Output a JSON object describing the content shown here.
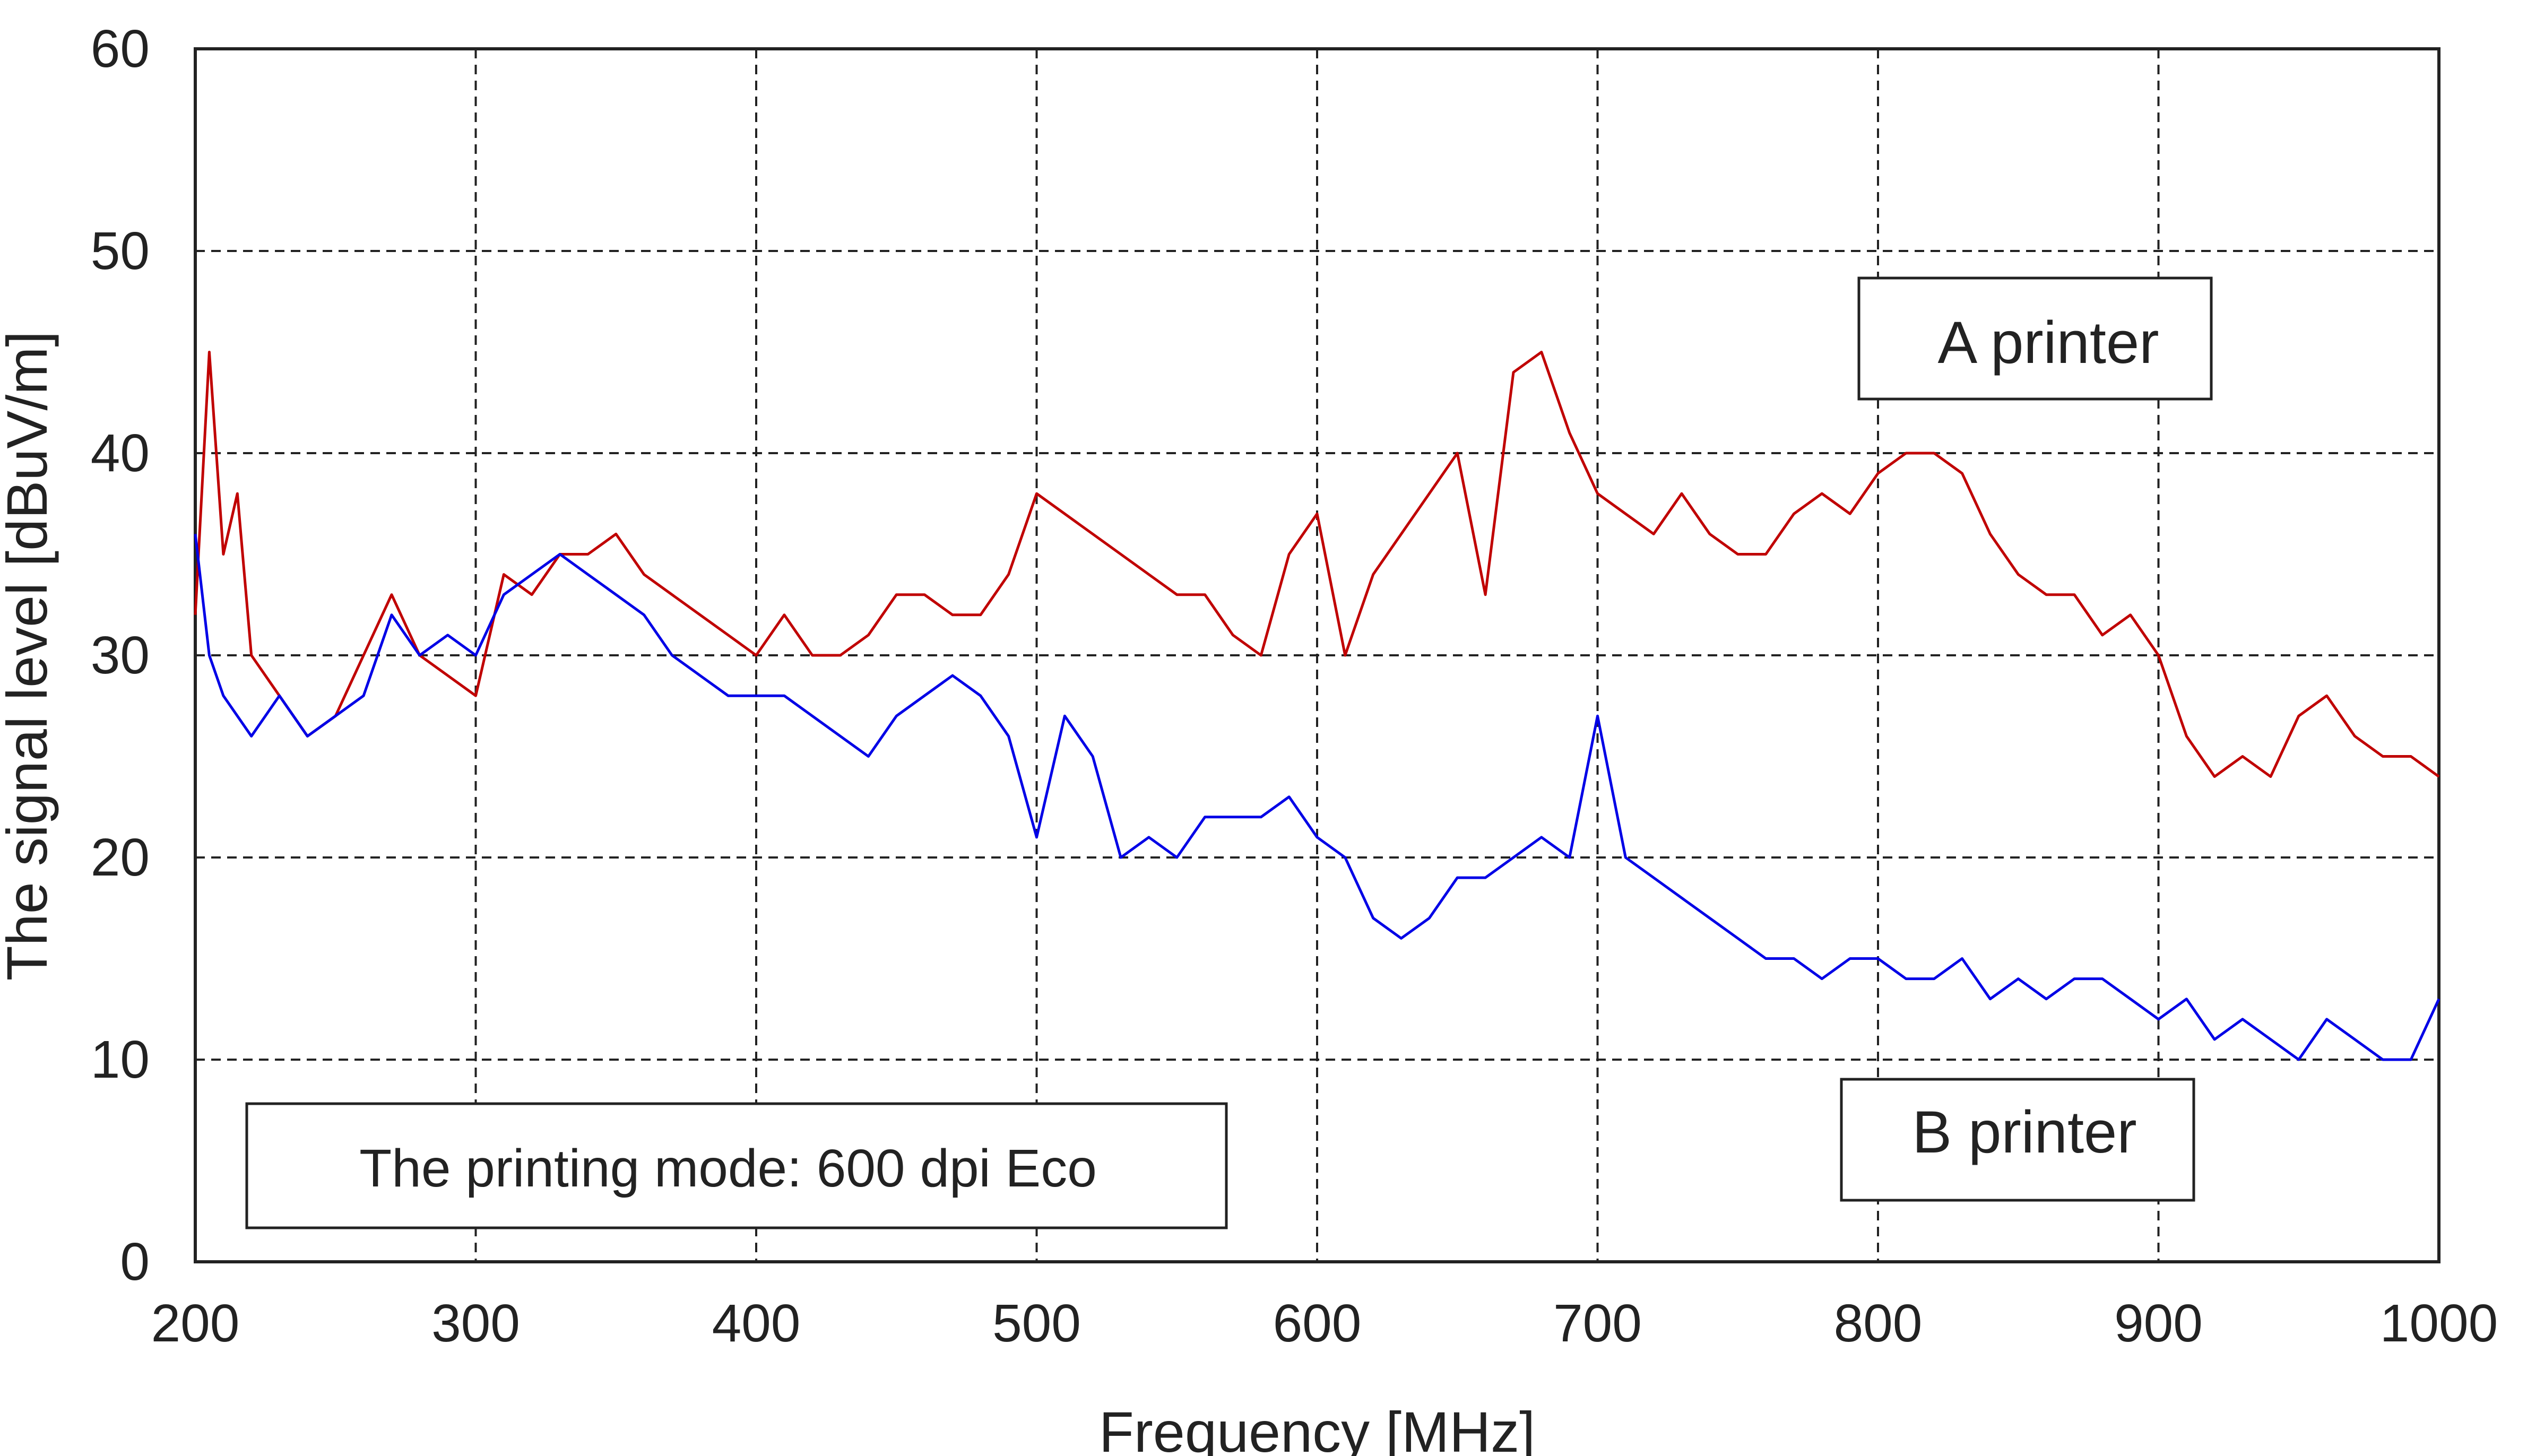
{
  "chart_data": {
    "type": "line",
    "title": "",
    "xlabel": "Frequency [MHz]",
    "ylabel": "The signal level [dBuV/m]",
    "xlim": [
      200,
      1000
    ],
    "ylim": [
      0,
      60
    ],
    "x_ticks": [
      200,
      300,
      400,
      500,
      600,
      700,
      800,
      900,
      1000
    ],
    "y_ticks": [
      0,
      10,
      20,
      30,
      40,
      50,
      60
    ],
    "grid": true,
    "grid_style": "dashed",
    "legend": "none",
    "series": [
      {
        "name": "A printer",
        "color": "#c00000",
        "x": [
          200,
          205,
          210,
          215,
          220,
          230,
          240,
          250,
          260,
          270,
          280,
          290,
          300,
          310,
          320,
          330,
          340,
          350,
          360,
          370,
          380,
          390,
          400,
          410,
          420,
          430,
          440,
          450,
          460,
          470,
          480,
          490,
          500,
          510,
          520,
          530,
          540,
          550,
          560,
          570,
          580,
          590,
          600,
          610,
          620,
          630,
          640,
          650,
          660,
          670,
          680,
          690,
          700,
          710,
          720,
          730,
          740,
          750,
          760,
          770,
          780,
          790,
          800,
          810,
          820,
          830,
          840,
          850,
          860,
          870,
          880,
          890,
          900,
          910,
          920,
          930,
          940,
          950,
          960,
          970,
          980,
          990,
          1000
        ],
        "y": [
          32,
          45,
          35,
          38,
          30,
          28,
          26,
          27,
          30,
          33,
          30,
          29,
          28,
          34,
          33,
          35,
          35,
          36,
          34,
          33,
          32,
          31,
          30,
          32,
          30,
          30,
          31,
          33,
          33,
          32,
          32,
          34,
          38,
          37,
          36,
          35,
          34,
          33,
          33,
          31,
          30,
          35,
          37,
          30,
          34,
          36,
          38,
          40,
          33,
          44,
          45,
          41,
          38,
          37,
          36,
          38,
          36,
          35,
          35,
          37,
          38,
          37,
          39,
          40,
          40,
          39,
          36,
          34,
          33,
          33,
          31,
          32,
          30,
          26,
          24,
          25,
          24,
          27,
          28,
          26,
          25,
          25,
          24
        ]
      },
      {
        "name": "B printer",
        "color": "#0000e6",
        "x": [
          200,
          205,
          210,
          215,
          220,
          230,
          240,
          250,
          260,
          270,
          280,
          290,
          300,
          310,
          320,
          330,
          340,
          350,
          360,
          370,
          380,
          390,
          400,
          410,
          420,
          430,
          440,
          450,
          460,
          470,
          480,
          490,
          500,
          510,
          520,
          530,
          540,
          550,
          560,
          570,
          580,
          590,
          600,
          610,
          620,
          630,
          640,
          650,
          660,
          670,
          680,
          690,
          700,
          710,
          720,
          730,
          740,
          750,
          760,
          770,
          780,
          790,
          800,
          810,
          820,
          830,
          840,
          850,
          860,
          870,
          880,
          890,
          900,
          910,
          920,
          930,
          940,
          950,
          960,
          970,
          980,
          990,
          1000
        ],
        "y": [
          36,
          30,
          28,
          27,
          26,
          28,
          26,
          27,
          28,
          32,
          30,
          31,
          30,
          33,
          34,
          35,
          34,
          33,
          32,
          30,
          29,
          28,
          28,
          28,
          27,
          26,
          25,
          27,
          28,
          29,
          28,
          26,
          21,
          27,
          25,
          20,
          21,
          20,
          22,
          22,
          22,
          23,
          21,
          20,
          17,
          16,
          17,
          19,
          19,
          20,
          21,
          20,
          27,
          20,
          19,
          18,
          17,
          16,
          15,
          15,
          14,
          15,
          15,
          14,
          14,
          15,
          13,
          14,
          13,
          14,
          14,
          13,
          12,
          13,
          11,
          12,
          11,
          10,
          12,
          11,
          10,
          10,
          13
        ]
      }
    ],
    "annotations": [
      "A printer",
      "B printer",
      "The printing mode: 600 dpi Eco"
    ]
  }
}
